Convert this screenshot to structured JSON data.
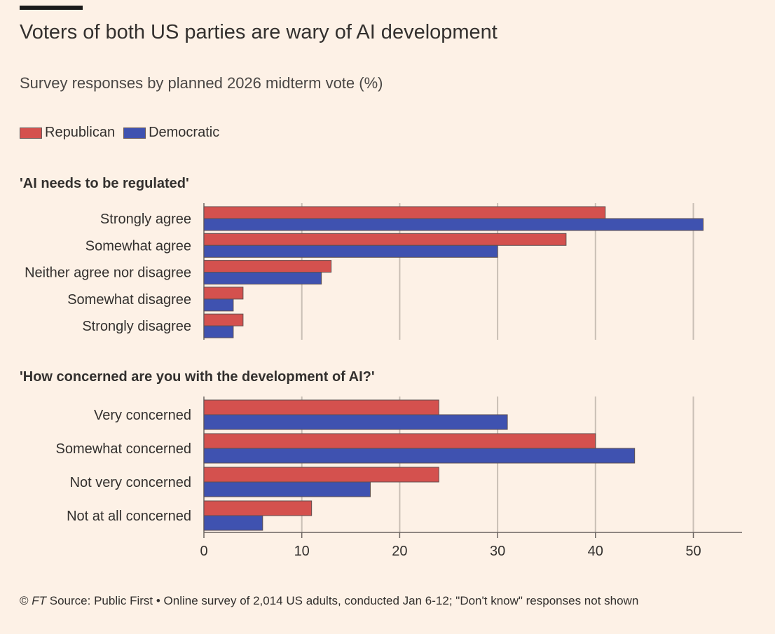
{
  "header": {
    "title": "Voters of both US parties are wary of AI development",
    "subtitle": "Survey responses by planned 2026 midterm vote (%)"
  },
  "legend": [
    {
      "name": "Republican",
      "color": "#d4514e"
    },
    {
      "name": "Democratic",
      "color": "#3f52b0"
    }
  ],
  "chart_data": [
    {
      "type": "bar",
      "orientation": "horizontal",
      "title": "'AI needs to be regulated'",
      "categories": [
        "Strongly agree",
        "Somewhat agree",
        "Neither agree nor disagree",
        "Somewhat disagree",
        "Strongly disagree"
      ],
      "series": [
        {
          "name": "Republican",
          "color": "#d4514e",
          "values": [
            41,
            37,
            13,
            4,
            4
          ]
        },
        {
          "name": "Democratic",
          "color": "#3f52b0",
          "values": [
            51,
            30,
            12,
            3,
            3
          ]
        }
      ],
      "xlim": [
        0,
        55
      ],
      "xticks": [
        0,
        10,
        20,
        30,
        40,
        50
      ],
      "grid": true
    },
    {
      "type": "bar",
      "orientation": "horizontal",
      "title": "'How concerned are you with the development of AI?'",
      "categories": [
        "Very concerned",
        "Somewhat concerned",
        "Not very concerned",
        "Not at all concerned"
      ],
      "series": [
        {
          "name": "Republican",
          "color": "#d4514e",
          "values": [
            24,
            40,
            24,
            11
          ]
        },
        {
          "name": "Democratic",
          "color": "#3f52b0",
          "values": [
            31,
            44,
            17,
            6
          ]
        }
      ],
      "xlim": [
        0,
        55
      ],
      "xticks": [
        0,
        10,
        20,
        30,
        40,
        50
      ],
      "xtick_labels": [
        "0",
        "10",
        "20",
        "30",
        "40",
        "50"
      ],
      "grid": true
    }
  ],
  "footer": {
    "copyright": "© ",
    "brand": "FT",
    "source": " Source: Public First • Online survey of 2,014 US adults, conducted Jan 6-12; \"Don't know\" responses not shown"
  }
}
